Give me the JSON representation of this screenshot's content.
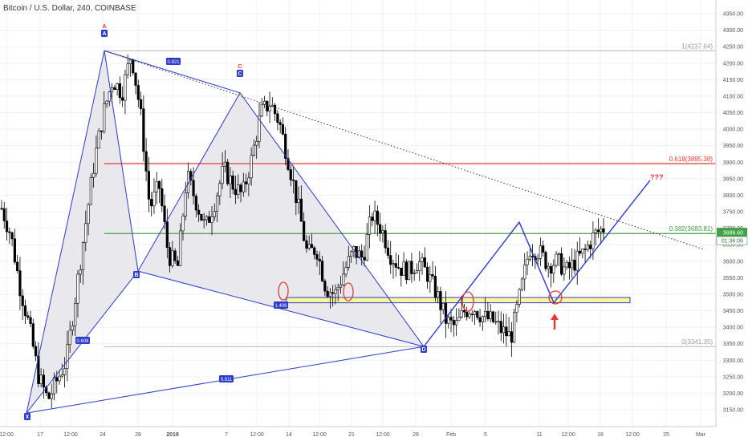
{
  "header": {
    "title": "Bitcoin / U.S. Dollar, 240, COINBASE"
  },
  "chart_data": {
    "type": "candlestick",
    "symbol": "Bitcoin / U.S. Dollar",
    "interval": "240",
    "exchange": "COINBASE",
    "y_ticks": [
      3150,
      3200,
      3250,
      3300,
      3350,
      3400,
      3450,
      3500,
      3550,
      3600,
      3650,
      3700,
      3750,
      3800,
      3850,
      3900,
      3950,
      4000,
      4050,
      4100,
      4150,
      4200,
      4250,
      4300,
      4350
    ],
    "x_ticks": [
      "12:00",
      "17",
      "12:00",
      "24",
      "28",
      "2019",
      "7",
      "12:00",
      "14",
      "12:00",
      "21",
      "12:00",
      "28",
      "Feb",
      "5",
      "11",
      "12:00",
      "18",
      "12:00",
      "25",
      "Mar"
    ],
    "price_path": [
      3760,
      3680,
      3520,
      3400,
      3250,
      3180,
      3240,
      3300,
      3500,
      3700,
      3900,
      4050,
      4150,
      4110,
      4230,
      4050,
      3760,
      3830,
      3620,
      3580,
      3860,
      3780,
      3700,
      3780,
      3880,
      3830,
      3800,
      3910,
      4050,
      4080,
      4020,
      3900,
      3770,
      3620,
      3640,
      3520,
      3500,
      3570,
      3630,
      3610,
      3740,
      3700,
      3620,
      3580,
      3570,
      3600,
      3560,
      3500,
      3420,
      3400,
      3450,
      3460,
      3430,
      3420,
      3390,
      3370,
      3500,
      3640,
      3630,
      3590,
      3600,
      3570,
      3600,
      3630,
      3680,
      3700
    ],
    "current_price": "3686.60",
    "countdown": "01:36:06",
    "fib_levels": [
      {
        "label": "1(4237.64)",
        "price": 4237.64,
        "color": "#9e9e9e"
      },
      {
        "label": "0.618(3895.38)",
        "price": 3895.38,
        "color": "#e53935"
      },
      {
        "label": "0.382(3683.81)",
        "price": 3683.81,
        "color": "#43a047"
      },
      {
        "label": "0(3341.35)",
        "price": 3341.35,
        "color": "#9e9e9e"
      }
    ],
    "pattern_points": [
      {
        "label": "X",
        "date": "Dec 15",
        "price": 3140
      },
      {
        "label": "A",
        "date": "Dec 24",
        "price": 4237.64
      },
      {
        "label": "B",
        "date": "Dec 28",
        "price": 3570
      },
      {
        "label": "C",
        "date": "Jan 8",
        "price": 4110
      },
      {
        "label": "D",
        "date": "Jan 28",
        "price": 3341.35
      }
    ],
    "pattern_ratios": [
      "0.821",
      "0.608",
      "1.406",
      "0.811"
    ],
    "projection": "???",
    "support_zone": {
      "from": 3474,
      "to": 3490
    },
    "colors": {
      "pattern": "#2b3acb",
      "pattern_fill": "#e9e9ed",
      "zone": "#fff59d",
      "red": "#e53935",
      "green": "#43a047",
      "up": "#ffffff",
      "down": "#000000"
    }
  }
}
